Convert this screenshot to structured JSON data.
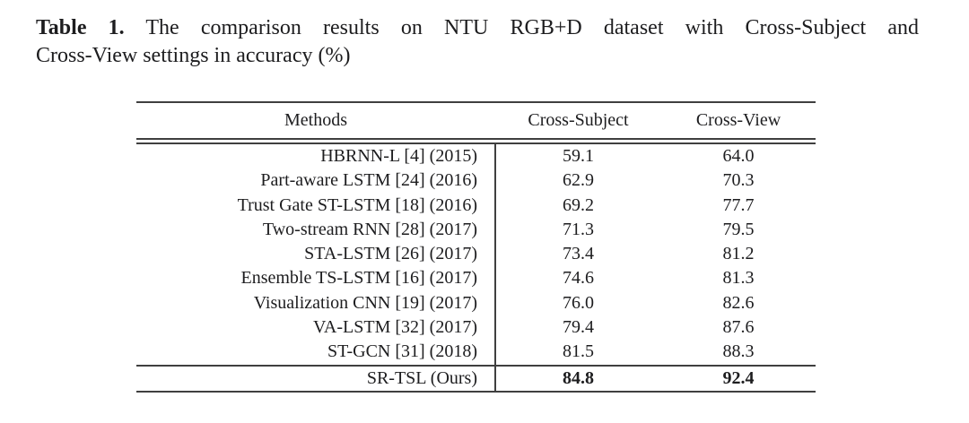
{
  "colors": {
    "background": "#ffffff",
    "text": "#1d1d1f",
    "rule": "#3f3f3f"
  },
  "caption": {
    "label": "Table 1.",
    "line1_rest": "The comparison results on NTU RGB+D dataset with Cross-Subject and",
    "line2": "Cross-View settings in accuracy (%)"
  },
  "table": {
    "columns": [
      "Methods",
      "Cross-Subject",
      "Cross-View"
    ],
    "rows": [
      {
        "method": "HBRNN-L [4] (2015)",
        "cross_subject": "59.1",
        "cross_view": "64.0"
      },
      {
        "method": "Part-aware LSTM [24] (2016)",
        "cross_subject": "62.9",
        "cross_view": "70.3"
      },
      {
        "method": "Trust Gate ST-LSTM [18] (2016)",
        "cross_subject": "69.2",
        "cross_view": "77.7"
      },
      {
        "method": "Two-stream RNN [28] (2017)",
        "cross_subject": "71.3",
        "cross_view": "79.5"
      },
      {
        "method": "STA-LSTM [26] (2017)",
        "cross_subject": "73.4",
        "cross_view": "81.2"
      },
      {
        "method": "Ensemble TS-LSTM [16] (2017)",
        "cross_subject": "74.6",
        "cross_view": "81.3"
      },
      {
        "method": "Visualization CNN [19] (2017)",
        "cross_subject": "76.0",
        "cross_view": "82.6"
      },
      {
        "method": "VA-LSTM [32] (2017)",
        "cross_subject": "79.4",
        "cross_view": "87.6"
      },
      {
        "method": "ST-GCN [31] (2018)",
        "cross_subject": "81.5",
        "cross_view": "88.3"
      }
    ],
    "final_row": {
      "method": "SR-TSL (Ours)",
      "cross_subject": "84.8",
      "cross_view": "92.4"
    }
  }
}
